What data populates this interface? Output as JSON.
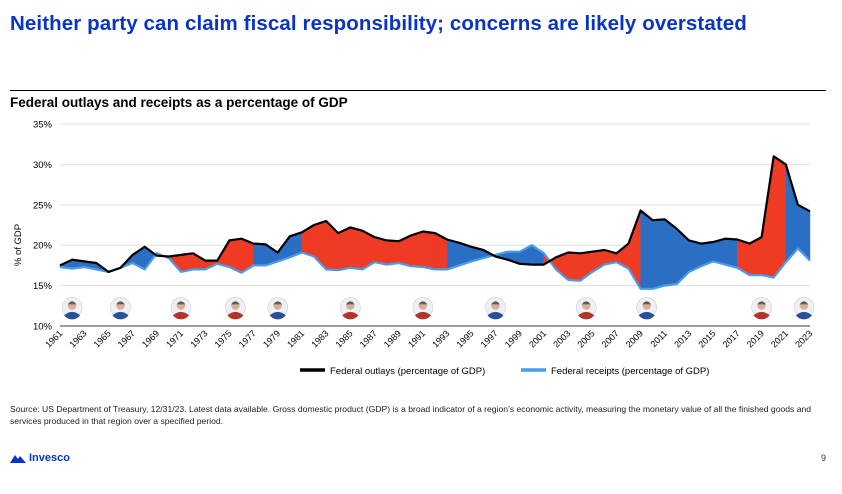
{
  "headline": "Neither party can claim fiscal responsibility; concerns are likely overstated",
  "source": "Source: US Department of Treasury, 12/31/23. Latest data available. Gross domestic product (GDP) is a broad indicator of a region’s economic activity, measuring the monetary value of all the finished goods and services produced in that region over a specified period.",
  "logo": {
    "name": "Invesco"
  },
  "page_number": "9",
  "colors": {
    "headline": "#0a33c9",
    "outlays": "#000000",
    "receipts": "#4a9be8",
    "deficit_democrat": "#2a6fc4",
    "deficit_republican": "#ef3b24"
  },
  "chart_data": {
    "type": "area",
    "title": "Federal outlays and receipts as a percentage of GDP",
    "ylabel": "% of GDP",
    "xlabel": "",
    "ylim": [
      10,
      35
    ],
    "yticks": [
      10,
      15,
      20,
      25,
      30,
      35
    ],
    "ytick_labels": [
      "10%",
      "15%",
      "20%",
      "25%",
      "30%",
      "35%"
    ],
    "xtick_labels": [
      "1961",
      "1963",
      "1965",
      "1967",
      "1969",
      "1971",
      "1973",
      "1975",
      "1977",
      "1979",
      "1981",
      "1983",
      "1985",
      "1987",
      "1989",
      "1991",
      "1993",
      "1995",
      "1997",
      "1999",
      "2001",
      "2003",
      "2005",
      "2007",
      "2009",
      "2011",
      "2013",
      "2015",
      "2017",
      "2019",
      "2021",
      "2023"
    ],
    "grid": true,
    "legend": "bottom",
    "x": [
      1961,
      1962,
      1963,
      1964,
      1965,
      1966,
      1967,
      1968,
      1969,
      1970,
      1971,
      1972,
      1973,
      1974,
      1975,
      1976,
      1977,
      1978,
      1979,
      1980,
      1981,
      1982,
      1983,
      1984,
      1985,
      1986,
      1987,
      1988,
      1989,
      1990,
      1991,
      1992,
      1993,
      1994,
      1995,
      1996,
      1997,
      1998,
      1999,
      2000,
      2001,
      2002,
      2003,
      2004,
      2005,
      2006,
      2007,
      2008,
      2009,
      2010,
      2011,
      2012,
      2013,
      2014,
      2015,
      2016,
      2017,
      2018,
      2019,
      2020,
      2021,
      2022,
      2023
    ],
    "series": [
      {
        "name": "Federal outlays (percentage of GDP)",
        "color": "#000000",
        "values": [
          17.5,
          18.2,
          18.0,
          17.8,
          16.7,
          17.2,
          18.8,
          19.8,
          18.7,
          18.6,
          18.8,
          19.0,
          18.1,
          18.1,
          20.6,
          20.8,
          20.2,
          20.1,
          19.1,
          21.1,
          21.6,
          22.5,
          23.0,
          21.5,
          22.2,
          21.8,
          21.0,
          20.6,
          20.5,
          21.2,
          21.7,
          21.5,
          20.7,
          20.3,
          19.8,
          19.4,
          18.6,
          18.2,
          17.7,
          17.6,
          17.6,
          18.5,
          19.1,
          19.0,
          19.2,
          19.4,
          19.0,
          20.2,
          24.3,
          23.1,
          23.2,
          22.0,
          20.6,
          20.2,
          20.4,
          20.8,
          20.7,
          20.2,
          21.0,
          31.0,
          30.0,
          25.0,
          24.2
        ]
      },
      {
        "name": "Federal receipts (percentage of GDP)",
        "color": "#4a9be8",
        "values": [
          17.3,
          17.1,
          17.3,
          17.0,
          16.7,
          17.2,
          17.8,
          17.0,
          19.0,
          18.4,
          16.7,
          17.0,
          17.0,
          17.7,
          17.3,
          16.6,
          17.5,
          17.5,
          18.0,
          18.5,
          19.1,
          18.6,
          17.0,
          16.9,
          17.2,
          17.0,
          17.9,
          17.6,
          17.8,
          17.4,
          17.3,
          17.0,
          17.0,
          17.5,
          18.0,
          18.4,
          18.8,
          19.2,
          19.2,
          20.0,
          19.0,
          17.0,
          15.7,
          15.6,
          16.7,
          17.6,
          17.9,
          17.1,
          14.6,
          14.6,
          15.0,
          15.2,
          16.7,
          17.4,
          18.0,
          17.6,
          17.2,
          16.3,
          16.3,
          16.0,
          17.9,
          19.6,
          18.1
        ]
      }
    ],
    "administrations": [
      {
        "party": "D",
        "start": 1961,
        "end": 1969
      },
      {
        "party": "R",
        "start": 1969,
        "end": 1977
      },
      {
        "party": "D",
        "start": 1977,
        "end": 1981
      },
      {
        "party": "R",
        "start": 1981,
        "end": 1993
      },
      {
        "party": "D",
        "start": 1993,
        "end": 2001
      },
      {
        "party": "R",
        "start": 2001,
        "end": 2009
      },
      {
        "party": "D",
        "start": 2009,
        "end": 2017
      },
      {
        "party": "R",
        "start": 2017,
        "end": 2021
      },
      {
        "party": "D",
        "start": 2021,
        "end": 2023
      }
    ],
    "portraits": [
      {
        "name": "kennedy",
        "year": 1962,
        "party": "D"
      },
      {
        "name": "johnson",
        "year": 1966,
        "party": "D"
      },
      {
        "name": "nixon",
        "year": 1971,
        "party": "R"
      },
      {
        "name": "ford",
        "year": 1975.5,
        "party": "R"
      },
      {
        "name": "carter",
        "year": 1979,
        "party": "D"
      },
      {
        "name": "reagan",
        "year": 1985,
        "party": "R"
      },
      {
        "name": "bush-sr",
        "year": 1991,
        "party": "R"
      },
      {
        "name": "clinton",
        "year": 1997,
        "party": "D"
      },
      {
        "name": "bush-jr",
        "year": 2004.5,
        "party": "R"
      },
      {
        "name": "obama",
        "year": 2009.5,
        "party": "D"
      },
      {
        "name": "trump",
        "year": 2019,
        "party": "R"
      },
      {
        "name": "biden",
        "year": 2022.5,
        "party": "D"
      }
    ]
  }
}
